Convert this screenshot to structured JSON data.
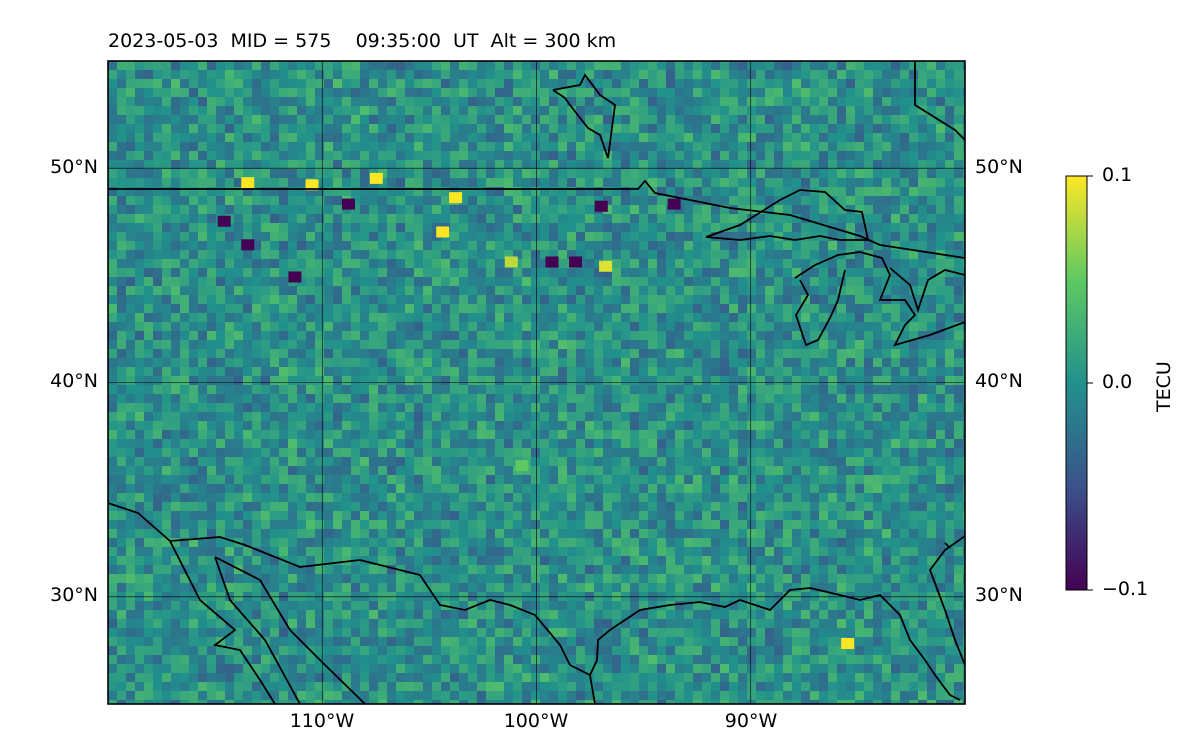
{
  "title": {
    "date": "2023-05-03",
    "mid": "MID = 575",
    "time": "09:35:00  UT",
    "alt": "Alt = 300 km"
  },
  "map": {
    "lon_range": [
      -120,
      -80
    ],
    "lat_range": [
      25,
      55
    ],
    "lat_gridlines": [
      30,
      40,
      50
    ],
    "lon_gridlines": [
      -110,
      -100,
      -90
    ],
    "lat_tick_labels": [
      "50°N",
      "40°N",
      "30°N"
    ],
    "lon_tick_labels": [
      "110°W",
      "100°W",
      "90°W"
    ],
    "coastlines": "on",
    "gridlines": "on"
  },
  "colorbar": {
    "label": "TECU",
    "min": -0.1,
    "max": 0.1,
    "tick_labels": [
      "0.1",
      "0.0",
      "−0.1"
    ],
    "colormap": "viridis"
  },
  "chart_data": {
    "type": "heatmap",
    "quantity": "TECU",
    "value_range": [
      -0.1,
      0.1
    ],
    "background_level": 0.0,
    "hotspots": [
      {
        "lat": 49.3,
        "lon": -113.5,
        "value": 0.1
      },
      {
        "lat": 49.2,
        "lon": -110.5,
        "value": 0.1
      },
      {
        "lat": 49.5,
        "lon": -107.5,
        "value": 0.1
      },
      {
        "lat": 48.6,
        "lon": -103.8,
        "value": 0.1
      },
      {
        "lat": 47.0,
        "lon": -104.4,
        "value": 0.1
      },
      {
        "lat": 45.6,
        "lon": -101.2,
        "value": 0.08
      },
      {
        "lat": 45.4,
        "lon": -96.8,
        "value": 0.09
      },
      {
        "lat": 36.1,
        "lon": -100.7,
        "value": 0.05
      },
      {
        "lat": 27.8,
        "lon": -85.5,
        "value": 0.1
      },
      {
        "lat": 47.5,
        "lon": -114.6,
        "value": -0.1
      },
      {
        "lat": 46.4,
        "lon": -113.5,
        "value": -0.1
      },
      {
        "lat": 44.9,
        "lon": -111.3,
        "value": -0.1
      },
      {
        "lat": 48.3,
        "lon": -108.8,
        "value": -0.1
      },
      {
        "lat": 45.6,
        "lon": -99.3,
        "value": -0.1
      },
      {
        "lat": 45.6,
        "lon": -98.2,
        "value": -0.1
      },
      {
        "lat": 48.2,
        "lon": -97.0,
        "value": -0.1
      },
      {
        "lat": 48.3,
        "lon": -93.6,
        "value": -0.1
      }
    ]
  }
}
